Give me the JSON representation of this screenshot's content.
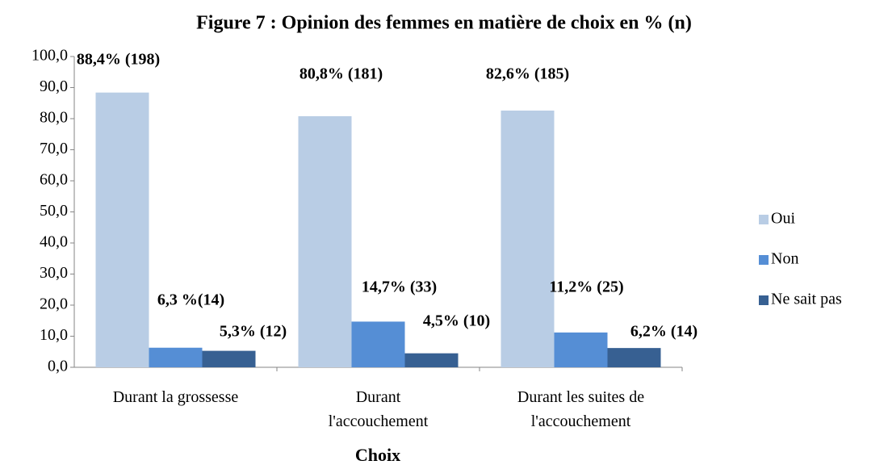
{
  "chart_data": {
    "type": "bar",
    "title": "Figure 7 : Opinion des femmes en matière de choix en % (n)",
    "x_label": "Choix",
    "categories": [
      "Durant la grossesse",
      "Durant l'accouchement",
      "Durant les suites de l'accouchement"
    ],
    "series": [
      {
        "name": "Oui",
        "color": "#b9cde5",
        "values": [
          88.4,
          80.8,
          82.6
        ],
        "value_labels": [
          "88,4% (198)",
          "80,8% (181)",
          "82,6% (185)"
        ]
      },
      {
        "name": "Non",
        "color": "#558ed5",
        "values": [
          6.3,
          14.7,
          11.2
        ],
        "value_labels": [
          "6,3 %(14)",
          "14,7% (33)",
          "11,2% (25)"
        ]
      },
      {
        "name": "Ne sait pas",
        "color": "#376092",
        "values": [
          5.3,
          4.5,
          6.2
        ],
        "value_labels": [
          "5,3% (12)",
          "4,5% (10)",
          "6,2% (14)"
        ]
      }
    ],
    "ylim": [
      0,
      100
    ],
    "yticks": [
      {
        "value": 0,
        "label": "0,0"
      },
      {
        "value": 10,
        "label": "10,0"
      },
      {
        "value": 20,
        "label": "20,0"
      },
      {
        "value": 30,
        "label": "30,0"
      },
      {
        "value": 40,
        "label": "40,0"
      },
      {
        "value": 50,
        "label": "50,0"
      },
      {
        "value": 60,
        "label": "60,0"
      },
      {
        "value": 70,
        "label": "70,0"
      },
      {
        "value": 80,
        "label": "80,0"
      },
      {
        "value": 90,
        "label": "90,0"
      },
      {
        "value": 100,
        "label": "100,0"
      }
    ],
    "legend": "right",
    "grid": false
  }
}
